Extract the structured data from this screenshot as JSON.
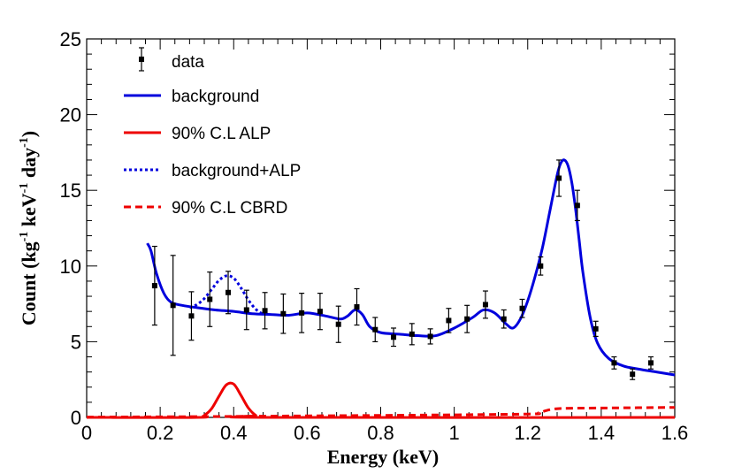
{
  "chart_data": {
    "type": "line",
    "title": "",
    "xlabel": "Energy (keV)",
    "ylabel": "Count (kg⁻¹ keV⁻¹ day⁻¹)",
    "ylabel_parts": {
      "base": "Count (kg",
      "sup1": "-1",
      "mid1": " keV",
      "sup2": "-1",
      "mid2": " day",
      "sup3": "-1",
      "end": ")"
    },
    "xlim": [
      0,
      1.6
    ],
    "ylim": [
      0,
      25
    ],
    "xticks": [
      0,
      0.2,
      0.4,
      0.6,
      0.8,
      1,
      1.2,
      1.4,
      1.6
    ],
    "xtick_labels": [
      "0",
      "0.2",
      "0.4",
      "0.6",
      "0.8",
      "1",
      "1.2",
      "1.4",
      "1.6"
    ],
    "yticks": [
      0,
      5,
      10,
      15,
      20,
      25
    ],
    "ytick_labels": [
      "0",
      "5",
      "10",
      "15",
      "20",
      "25"
    ],
    "grid": false,
    "legend_position": "top-left",
    "colors": {
      "data": "#000000",
      "background": "#0000dd",
      "alp": "#ee0000",
      "bg_alp": "#0000dd",
      "cbrd": "#ee0000"
    },
    "legend": [
      {
        "label": "data",
        "style": "marker"
      },
      {
        "label": "background",
        "style": "solid-blue"
      },
      {
        "label": "90% C.L ALP",
        "style": "solid-red"
      },
      {
        "label": "background+ALP",
        "style": "dotted-blue"
      },
      {
        "label": "90% C.L CBRD",
        "style": "dashed-red"
      }
    ],
    "data_points": [
      {
        "x": 0.185,
        "y": 8.7,
        "err": 2.6
      },
      {
        "x": 0.235,
        "y": 7.4,
        "err": 3.3
      },
      {
        "x": 0.285,
        "y": 6.7,
        "err": 1.6
      },
      {
        "x": 0.335,
        "y": 7.8,
        "err": 1.8
      },
      {
        "x": 0.385,
        "y": 8.25,
        "err": 1.4
      },
      {
        "x": 0.435,
        "y": 7.1,
        "err": 1.3
      },
      {
        "x": 0.485,
        "y": 7.05,
        "err": 1.2
      },
      {
        "x": 0.535,
        "y": 6.85,
        "err": 1.3
      },
      {
        "x": 0.585,
        "y": 6.9,
        "err": 1.3
      },
      {
        "x": 0.635,
        "y": 7.0,
        "err": 1.2
      },
      {
        "x": 0.685,
        "y": 6.15,
        "err": 1.2
      },
      {
        "x": 0.735,
        "y": 7.3,
        "err": 1.2
      },
      {
        "x": 0.785,
        "y": 5.8,
        "err": 0.8
      },
      {
        "x": 0.835,
        "y": 5.3,
        "err": 0.6
      },
      {
        "x": 0.885,
        "y": 5.5,
        "err": 0.7
      },
      {
        "x": 0.935,
        "y": 5.35,
        "err": 0.5
      },
      {
        "x": 0.985,
        "y": 6.4,
        "err": 0.8
      },
      {
        "x": 1.035,
        "y": 6.5,
        "err": 0.9
      },
      {
        "x": 1.085,
        "y": 7.45,
        "err": 0.9
      },
      {
        "x": 1.135,
        "y": 6.5,
        "err": 0.6
      },
      {
        "x": 1.185,
        "y": 7.2,
        "err": 0.6
      },
      {
        "x": 1.235,
        "y": 10.0,
        "err": 0.6
      },
      {
        "x": 1.285,
        "y": 15.8,
        "err": 1.2
      },
      {
        "x": 1.335,
        "y": 14.0,
        "err": 1.0
      },
      {
        "x": 1.385,
        "y": 5.85,
        "err": 0.5
      },
      {
        "x": 1.435,
        "y": 3.6,
        "err": 0.4
      },
      {
        "x": 1.485,
        "y": 2.85,
        "err": 0.35
      },
      {
        "x": 1.535,
        "y": 3.6,
        "err": 0.4
      }
    ],
    "background": {
      "x": [
        0.165,
        0.175,
        0.19,
        0.21,
        0.23,
        0.26,
        0.3,
        0.35,
        0.4,
        0.45,
        0.5,
        0.55,
        0.6,
        0.65,
        0.69,
        0.71,
        0.73,
        0.75,
        0.77,
        0.8,
        0.85,
        0.9,
        0.95,
        1.0,
        1.05,
        1.08,
        1.11,
        1.14,
        1.16,
        1.18,
        1.2,
        1.22,
        1.24,
        1.26,
        1.28,
        1.29,
        1.3,
        1.31,
        1.32,
        1.33,
        1.34,
        1.35,
        1.37,
        1.39,
        1.42,
        1.46,
        1.5,
        1.55,
        1.6
      ],
      "y": [
        11.5,
        11.0,
        9.5,
        8.2,
        7.6,
        7.4,
        7.25,
        7.1,
        7.0,
        6.85,
        6.8,
        6.75,
        6.9,
        6.7,
        6.5,
        6.7,
        7.1,
        6.8,
        6.0,
        5.6,
        5.5,
        5.4,
        5.4,
        5.9,
        6.6,
        7.1,
        6.9,
        6.2,
        5.9,
        6.5,
        7.7,
        9.3,
        11.2,
        13.6,
        16.0,
        16.8,
        17.0,
        16.6,
        15.5,
        13.8,
        11.7,
        9.6,
        6.6,
        4.9,
        3.9,
        3.4,
        3.2,
        3.0,
        2.8
      ]
    },
    "background_plus_alp": {
      "x": [
        0.28,
        0.3,
        0.32,
        0.34,
        0.36,
        0.38,
        0.4,
        0.42,
        0.44,
        0.46,
        0.48
      ],
      "y": [
        7.25,
        7.45,
        7.85,
        8.45,
        9.05,
        9.35,
        9.2,
        8.55,
        7.75,
        7.15,
        6.8
      ]
    },
    "alp": {
      "x": [
        0,
        0.3,
        0.32,
        0.34,
        0.36,
        0.38,
        0.4,
        0.42,
        0.44,
        0.46,
        0.48,
        1.6
      ],
      "y": [
        0,
        0,
        0.14,
        0.58,
        1.4,
        2.15,
        2.2,
        1.45,
        0.62,
        0.14,
        0,
        0
      ]
    },
    "cbrd": {
      "x": [
        0,
        0.3,
        0.6,
        0.9,
        1.2,
        1.23,
        1.25,
        1.27,
        1.3,
        1.4,
        1.5,
        1.6
      ],
      "y": [
        0.02,
        0.05,
        0.1,
        0.15,
        0.22,
        0.3,
        0.45,
        0.55,
        0.6,
        0.62,
        0.64,
        0.66
      ]
    }
  }
}
